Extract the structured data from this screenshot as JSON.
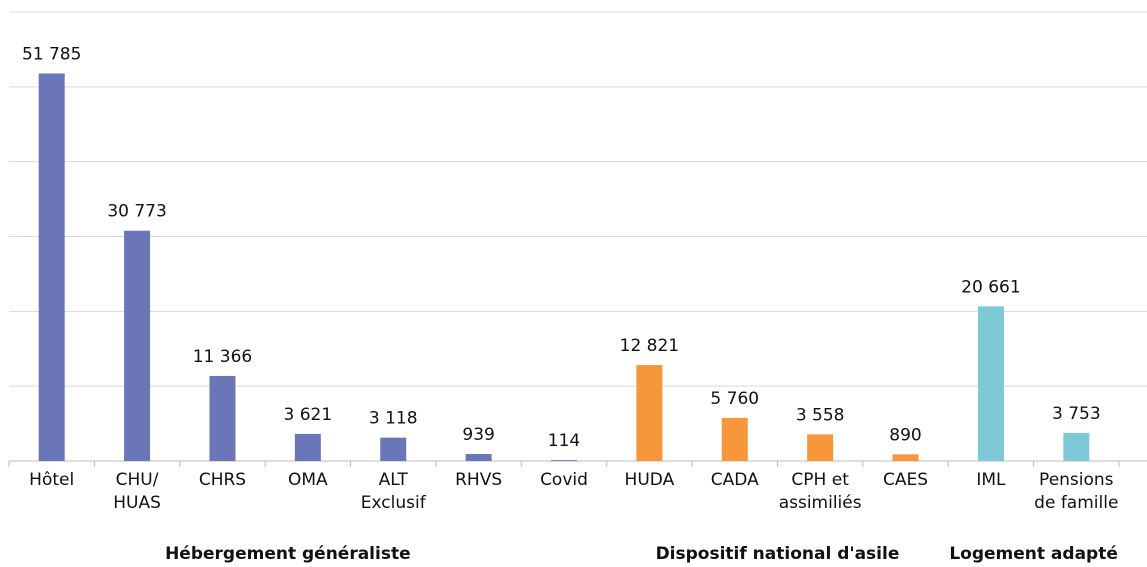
{
  "chart_data": {
    "type": "bar",
    "categories": [
      "Hôtel",
      "CHU/\nHUAS",
      "CHRS",
      "OMA",
      "ALT\nExclusif",
      "RHVS",
      "Covid",
      "HUDA",
      "CADA",
      "CPH et\nassimiliés",
      "CAES",
      "IML",
      "Pensions\nde famille"
    ],
    "values": [
      51785,
      30773,
      11366,
      3621,
      3118,
      939,
      114,
      12821,
      5760,
      3558,
      890,
      20661,
      3753
    ],
    "value_labels": [
      "51 785",
      "30 773",
      "11 366",
      "3 621",
      "3 118",
      "939",
      "114",
      "12 821",
      "5 760",
      "3 558",
      "890",
      "20 661",
      "3 753"
    ],
    "colors": [
      "#6b76b8",
      "#6b76b8",
      "#6b76b8",
      "#6b76b8",
      "#6b76b8",
      "#6b76b8",
      "#6b76b8",
      "#f5973a",
      "#f5973a",
      "#f5973a",
      "#f5973a",
      "#7fc9d6",
      "#7fc9d6"
    ],
    "groups": [
      {
        "label": "Hébergement généraliste",
        "count": 7
      },
      {
        "label": "Dispositif national d'asile",
        "count": 4
      },
      {
        "label": "Logement adapté",
        "count": 2
      }
    ],
    "ylim": [
      0,
      60000
    ],
    "yticks": [
      0,
      10000,
      20000,
      30000,
      40000,
      50000,
      60000
    ],
    "grid": true
  }
}
